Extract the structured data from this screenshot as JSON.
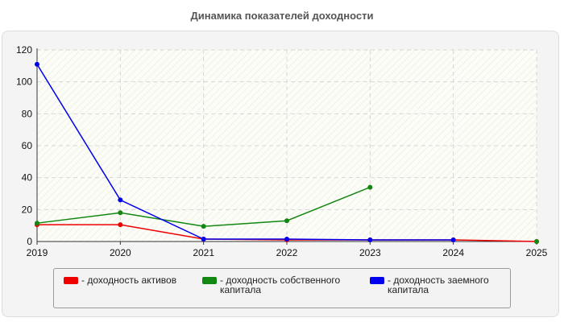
{
  "chart_data": {
    "type": "line",
    "title": "Динамика показателей доходности",
    "x": [
      "2019",
      "2020",
      "2021",
      "2022",
      "2023",
      "2024",
      "2025"
    ],
    "ylim": [
      0,
      120
    ],
    "yticks": [
      "0",
      "20",
      "40",
      "60",
      "80",
      "100",
      "120"
    ],
    "grid": true,
    "legend_position": "bottom",
    "series": [
      {
        "name": "- доходность активов",
        "color": "#ee0000",
        "values": [
          10.5,
          10.5,
          1.5,
          1.0,
          1.0,
          1.0,
          0.0
        ]
      },
      {
        "name": "- доходность собственного капитала",
        "color": "#118811",
        "values": [
          11.5,
          18.0,
          9.5,
          13.0,
          34.0,
          null,
          0.0
        ]
      },
      {
        "name": "- доходность заемного капитала",
        "color": "#0000ee",
        "values": [
          111.0,
          26.0,
          1.5,
          1.5,
          1.0,
          1.0,
          null
        ]
      }
    ]
  }
}
